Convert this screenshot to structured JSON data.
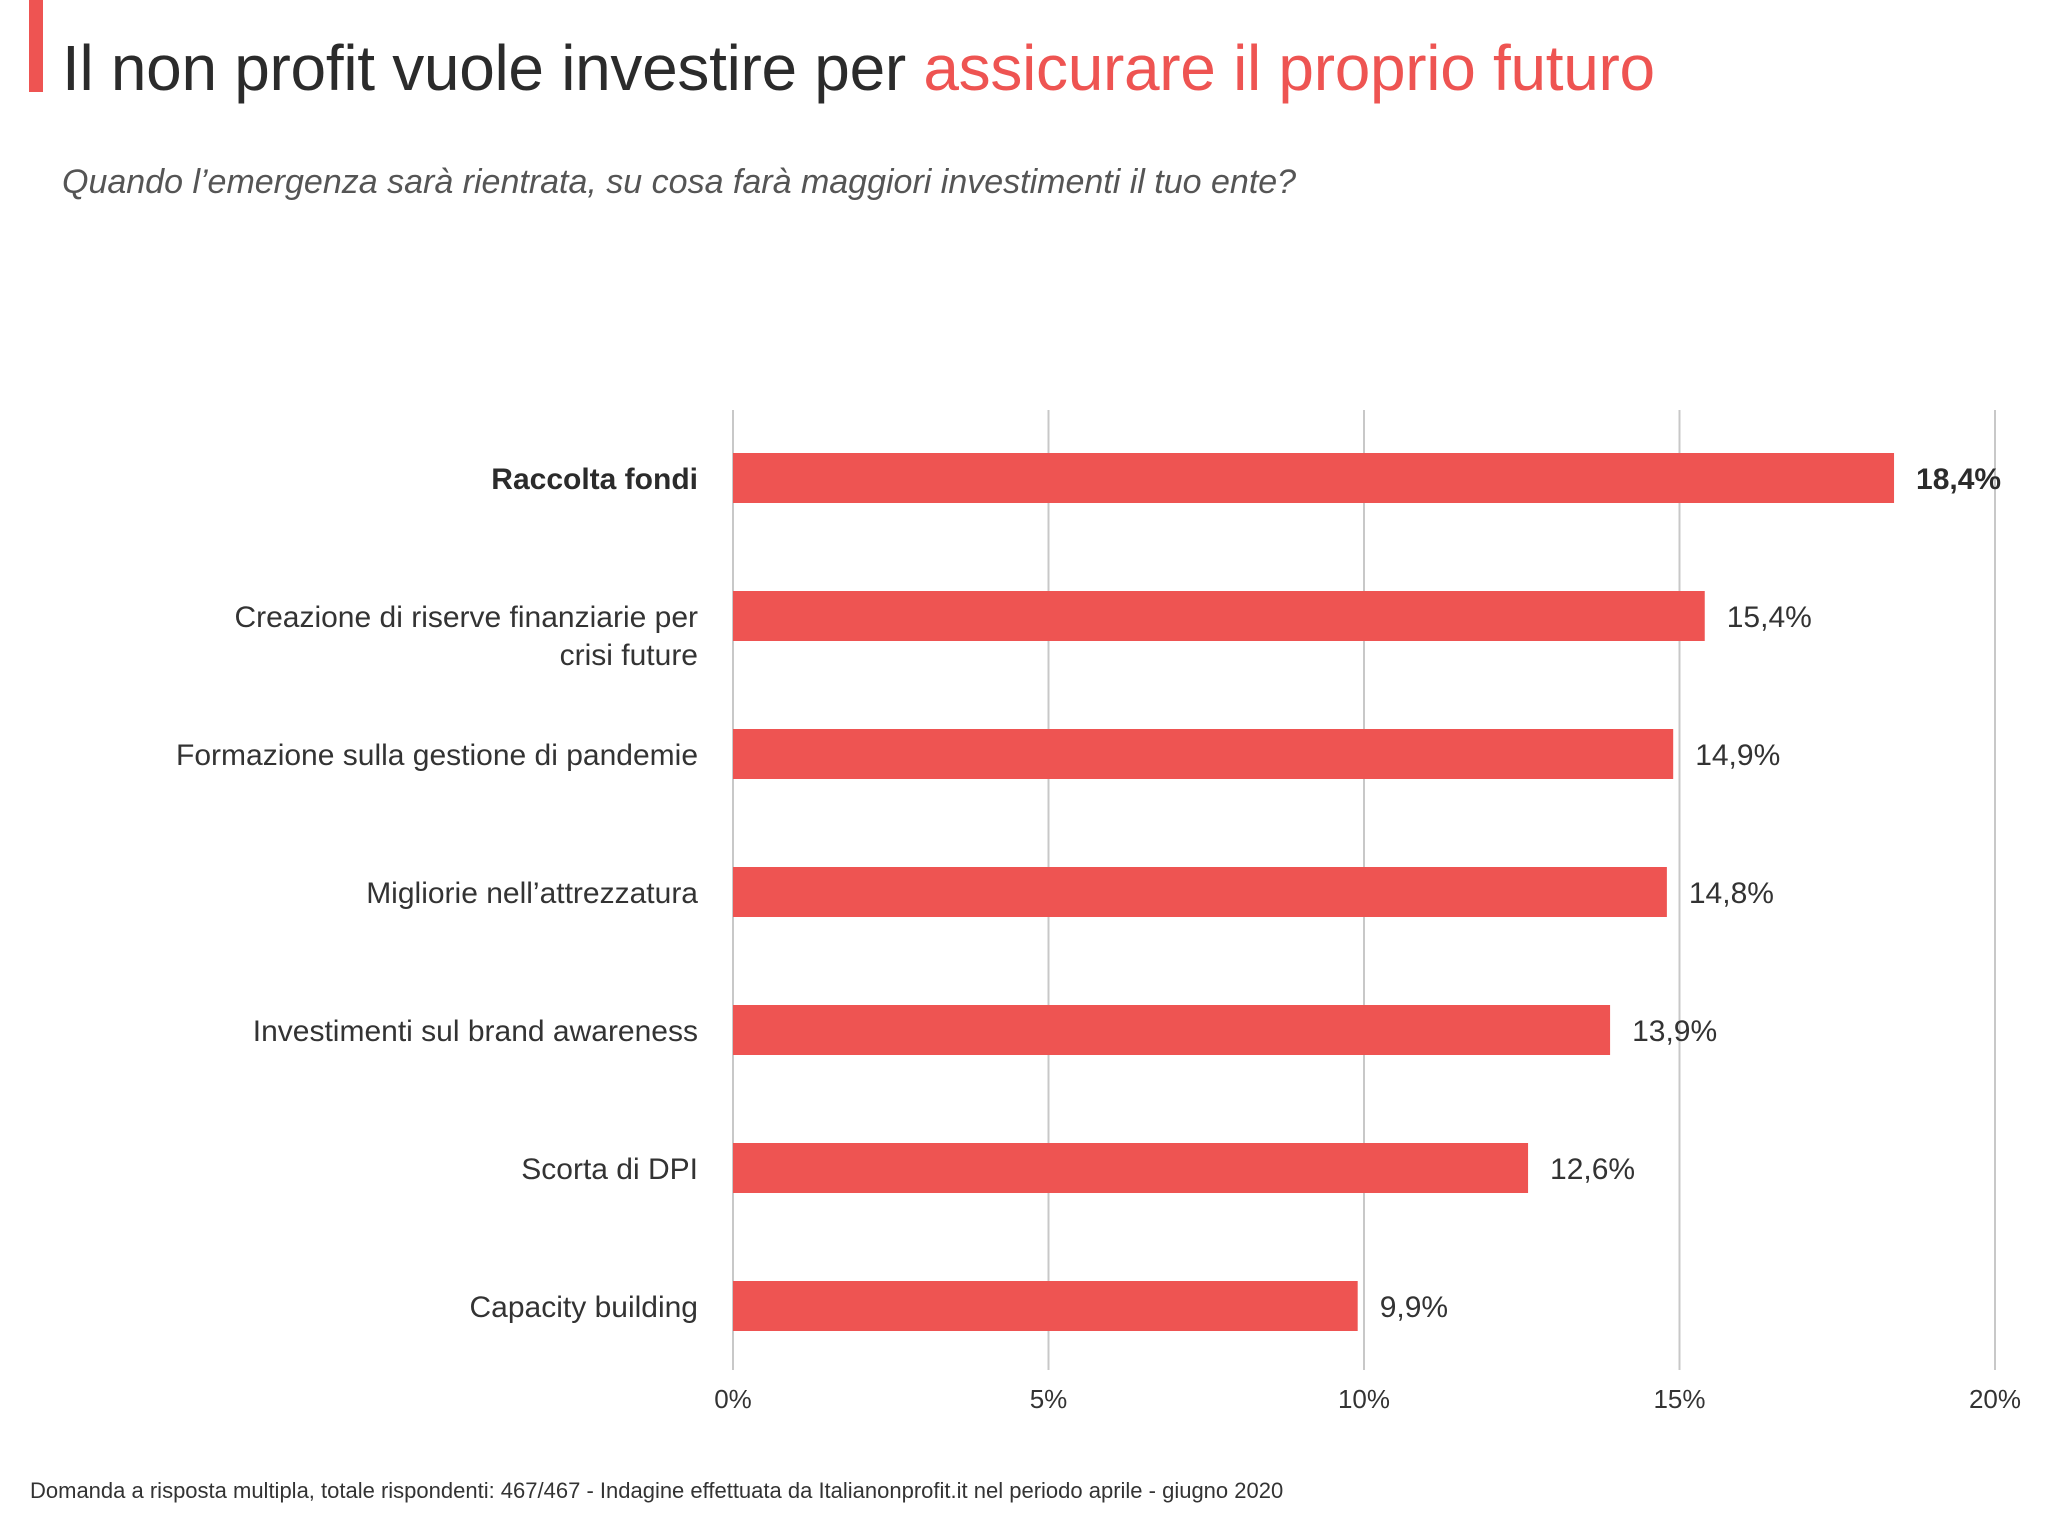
{
  "header": {
    "title_plain": "Il non profit vuole investire per ",
    "title_highlight": "assicurare il proprio futuro",
    "subtitle": "Quando l’emergenza sarà rientrata, su cosa farà maggiori investimenti il tuo ente?"
  },
  "footnote": "Domanda a risposta multipla, totale rispondenti: 467/467 - Indagine effettuata da Italianonprofit.it nel periodo aprile - giugno 2020",
  "colors": {
    "accent": "#ee5452",
    "bar": "#ee5452",
    "grid": "#c8c8c8",
    "text": "#333333"
  },
  "chart_data": {
    "type": "bar",
    "orientation": "horizontal",
    "categories": [
      "Raccolta fondi",
      "Creazione di riserve finanziarie per\ncrisi future",
      "Formazione sulla gestione di pandemie",
      "Migliorie nell’attrezzatura",
      "Investimenti sul brand awareness",
      "Scorta di DPI",
      "Capacity building"
    ],
    "values": [
      18.4,
      15.4,
      14.9,
      14.8,
      13.9,
      12.6,
      9.9
    ],
    "value_labels": [
      "18,4%",
      "15,4%",
      "14,9%",
      "14,8%",
      "13,9%",
      "12,6%",
      "9,9%"
    ],
    "highlighted_category": "Raccolta fondi",
    "xlim": [
      0,
      20
    ],
    "xticks": [
      0,
      5,
      10,
      15,
      20
    ],
    "xtick_labels": [
      "0%",
      "5%",
      "10%",
      "15%",
      "20%"
    ],
    "grid": "vertical",
    "legend": "none"
  }
}
